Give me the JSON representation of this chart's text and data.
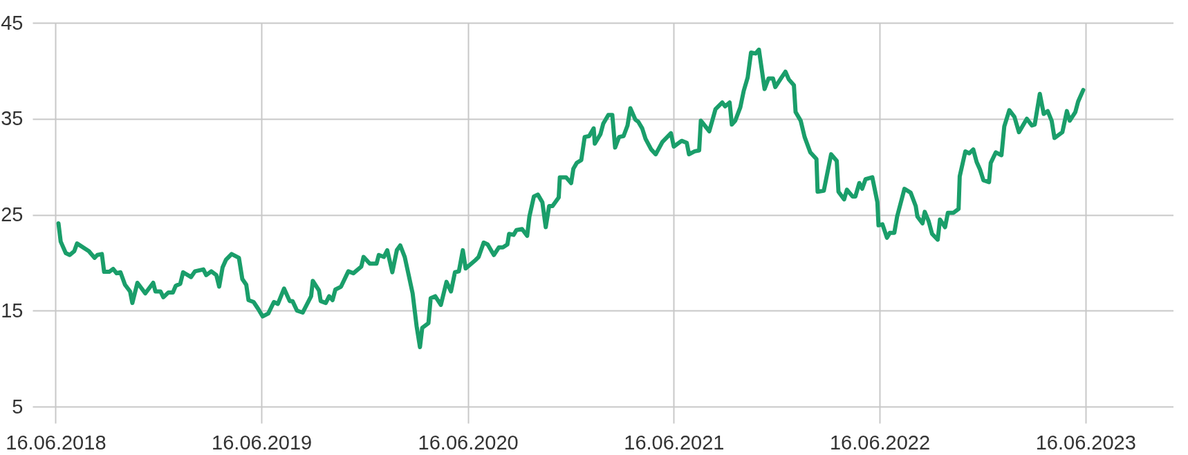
{
  "chart_data": {
    "type": "line",
    "x": [
      "2018-06-21",
      "2018-06-25",
      "2018-07-04",
      "2018-07-11",
      "2018-07-19",
      "2018-07-24",
      "2018-08-14",
      "2018-08-24",
      "2018-08-29",
      "2018-09-06",
      "2018-09-10",
      "2018-09-19",
      "2018-09-26",
      "2018-10-02",
      "2018-10-09",
      "2018-10-17",
      "2018-10-26",
      "2018-10-30",
      "2018-11-08",
      "2018-11-22",
      "2018-12-06",
      "2018-12-10",
      "2018-12-19",
      "2018-12-24",
      "2019-01-02",
      "2019-01-10",
      "2019-01-15",
      "2019-01-23",
      "2019-01-28",
      "2019-02-11",
      "2019-02-18",
      "2019-03-05",
      "2019-03-10",
      "2019-03-19",
      "2019-03-28",
      "2019-04-02",
      "2019-04-08",
      "2019-04-14",
      "2019-04-24",
      "2019-05-07",
      "2019-05-13",
      "2019-05-20",
      "2019-05-24",
      "2019-06-02",
      "2019-06-10",
      "2019-06-18",
      "2019-06-28",
      "2019-07-08",
      "2019-07-15",
      "2019-07-26",
      "2019-08-05",
      "2019-08-10",
      "2019-08-18",
      "2019-08-28",
      "2019-09-12",
      "2019-09-15",
      "2019-09-26",
      "2019-09-29",
      "2019-10-08",
      "2019-10-14",
      "2019-10-20",
      "2019-10-25",
      "2019-11-04",
      "2019-11-17",
      "2019-11-26",
      "2019-12-10",
      "2019-12-14",
      "2019-12-25",
      "2020-01-06",
      "2020-01-10",
      "2020-01-19",
      "2020-01-25",
      "2020-02-03",
      "2020-02-11",
      "2020-02-17",
      "2020-02-25",
      "2020-03-03",
      "2020-03-10",
      "2020-03-17",
      "2020-03-23",
      "2020-03-27",
      "2020-04-07",
      "2020-04-11",
      "2020-04-19",
      "2020-04-29",
      "2020-05-09",
      "2020-05-17",
      "2020-05-24",
      "2020-05-31",
      "2020-06-07",
      "2020-06-12",
      "2020-06-30",
      "2020-07-05",
      "2020-07-14",
      "2020-07-21",
      "2020-08-01",
      "2020-08-10",
      "2020-08-17",
      "2020-08-25",
      "2020-08-28",
      "2020-09-05",
      "2020-09-10",
      "2020-09-20",
      "2020-09-29",
      "2020-10-03",
      "2020-10-11",
      "2020-10-18",
      "2020-10-26",
      "2020-11-01",
      "2020-11-07",
      "2020-11-13",
      "2020-11-24",
      "2020-11-26",
      "2020-12-07",
      "2020-12-16",
      "2020-12-20",
      "2020-12-26",
      "2021-01-03",
      "2021-01-09",
      "2021-01-17",
      "2021-01-25",
      "2021-01-27",
      "2021-02-06",
      "2021-02-11",
      "2021-02-20",
      "2021-02-27",
      "2021-03-04",
      "2021-03-11",
      "2021-03-19",
      "2021-03-26",
      "2021-03-31",
      "2021-04-09",
      "2021-04-14",
      "2021-04-21",
      "2021-04-27",
      "2021-05-07",
      "2021-05-15",
      "2021-05-27",
      "2021-06-11",
      "2021-06-16",
      "2021-06-30",
      "2021-07-09",
      "2021-07-13",
      "2021-07-23",
      "2021-07-31",
      "2021-08-03",
      "2021-08-18",
      "2021-08-29",
      "2021-09-10",
      "2021-09-15",
      "2021-09-23",
      "2021-09-27",
      "2021-10-03",
      "2021-10-12",
      "2021-10-18",
      "2021-10-25",
      "2021-10-31",
      "2021-11-08",
      "2021-11-14",
      "2021-11-24",
      "2021-12-01",
      "2021-12-09",
      "2021-12-13",
      "2021-12-24",
      "2021-12-31",
      "2022-01-06",
      "2022-01-15",
      "2022-01-18",
      "2022-01-27",
      "2022-02-03",
      "2022-02-13",
      "2022-02-24",
      "2022-02-26",
      "2022-03-09",
      "2022-03-22",
      "2022-04-01",
      "2022-04-04",
      "2022-04-14",
      "2022-04-19",
      "2022-04-29",
      "2022-05-04",
      "2022-05-11",
      "2022-05-16",
      "2022-05-22",
      "2022-06-03",
      "2022-06-12",
      "2022-06-14",
      "2022-06-21",
      "2022-06-29",
      "2022-07-04",
      "2022-07-12",
      "2022-07-17",
      "2022-07-30",
      "2022-08-10",
      "2022-08-19",
      "2022-08-22",
      "2022-08-31",
      "2022-09-04",
      "2022-09-11",
      "2022-09-17",
      "2022-09-27",
      "2022-10-01",
      "2022-10-10",
      "2022-10-15",
      "2022-10-25",
      "2022-11-03",
      "2022-11-05",
      "2022-11-15",
      "2022-11-22",
      "2022-11-29",
      "2022-12-05",
      "2022-12-11",
      "2022-12-17",
      "2022-12-27",
      "2022-12-30",
      "2023-01-08",
      "2023-01-18",
      "2023-01-23",
      "2023-02-01",
      "2023-02-10",
      "2023-02-18",
      "2023-03-04",
      "2023-03-13",
      "2023-03-18",
      "2023-03-27",
      "2023-04-03",
      "2023-04-10",
      "2023-04-17",
      "2023-04-22",
      "2023-04-29",
      "2023-05-06",
      "2023-05-14",
      "2023-05-19",
      "2023-05-29",
      "2023-06-03",
      "2023-06-12"
    ],
    "series": [
      {
        "color": "#1a9e6a",
        "values": [
          24.1,
          22.2,
          21.0,
          20.8,
          21.2,
          22.0,
          21.2,
          20.5,
          20.8,
          20.9,
          19.05,
          19.05,
          19.35,
          18.9,
          19.0,
          17.7,
          17.0,
          15.8,
          17.9,
          16.8,
          17.9,
          17.0,
          17.0,
          16.4,
          16.9,
          16.9,
          17.6,
          17.8,
          19.0,
          18.5,
          19.1,
          19.3,
          18.7,
          19.1,
          18.7,
          17.5,
          19.5,
          20.3,
          20.9,
          20.5,
          18.3,
          17.7,
          16.1,
          15.9,
          15.2,
          14.4,
          14.7,
          15.9,
          15.7,
          17.3,
          16.0,
          16.0,
          15.0,
          14.8,
          16.5,
          18.1,
          17.1,
          16.0,
          15.8,
          16.5,
          16.1,
          17.2,
          17.5,
          19.1,
          18.9,
          19.6,
          20.6,
          19.9,
          19.9,
          20.8,
          20.6,
          21.3,
          19.0,
          21.3,
          21.8,
          20.6,
          18.7,
          16.8,
          13.4,
          11.2,
          13.2,
          13.7,
          16.3,
          16.5,
          15.6,
          18.0,
          17.0,
          19.0,
          19.1,
          21.3,
          19.4,
          20.3,
          20.6,
          22.1,
          21.9,
          20.8,
          21.6,
          21.6,
          21.9,
          23.0,
          22.9,
          23.4,
          23.5,
          22.8,
          24.8,
          26.9,
          27.1,
          26.3,
          23.7,
          25.9,
          25.9,
          26.8,
          28.9,
          28.9,
          28.3,
          29.8,
          30.4,
          30.7,
          33.1,
          33.2,
          34.0,
          32.4,
          33.4,
          34.5,
          35.4,
          35.4,
          32.0,
          33.1,
          33.2,
          34.3,
          36.1,
          34.9,
          34.7,
          34.0,
          32.9,
          31.8,
          31.3,
          32.6,
          33.5,
          32.1,
          32.7,
          32.5,
          31.3,
          31.6,
          31.7,
          34.8,
          33.7,
          36.0,
          36.7,
          36.3,
          36.7,
          34.4,
          34.8,
          36.2,
          37.9,
          39.3,
          41.9,
          41.8,
          42.2,
          38.1,
          39.2,
          39.2,
          38.3,
          39.3,
          39.9,
          39.1,
          38.5,
          35.7,
          34.8,
          33.1,
          31.5,
          30.8,
          27.4,
          27.5,
          31.3,
          30.6,
          27.4,
          26.6,
          27.6,
          26.9,
          26.9,
          28.3,
          27.7,
          28.7,
          28.9,
          26.3,
          23.9,
          24.0,
          22.6,
          23.1,
          23.1,
          24.8,
          27.7,
          27.3,
          25.9,
          24.8,
          24.1,
          25.3,
          24.3,
          23.0,
          22.4,
          24.5,
          23.7,
          25.2,
          25.2,
          25.6,
          29.0,
          31.6,
          31.4,
          31.8,
          30.5,
          29.7,
          28.6,
          28.4,
          30.4,
          31.5,
          31.2,
          34.2,
          35.9,
          35.2,
          33.6,
          35.0,
          34.3,
          34.4,
          37.6,
          35.5,
          35.8,
          34.8,
          33.0,
          33.3,
          33.6,
          35.8,
          34.8,
          35.7,
          36.8,
          38.0
        ]
      }
    ],
    "xlim": [
      "2018-05-06",
      "2023-11-19"
    ],
    "xticks": [
      {
        "value": "2018-06-16",
        "label": "16.06.2018"
      },
      {
        "value": "2019-06-16",
        "label": "16.06.2019"
      },
      {
        "value": "2020-06-16",
        "label": "16.06.2020"
      },
      {
        "value": "2021-06-16",
        "label": "16.06.2021"
      },
      {
        "value": "2022-06-16",
        "label": "16.06.2022"
      },
      {
        "value": "2023-06-16",
        "label": "16.06.2023"
      }
    ],
    "ylim": [
      5,
      45
    ],
    "yticks": [
      5,
      15,
      25,
      35,
      45
    ],
    "grid": true
  }
}
